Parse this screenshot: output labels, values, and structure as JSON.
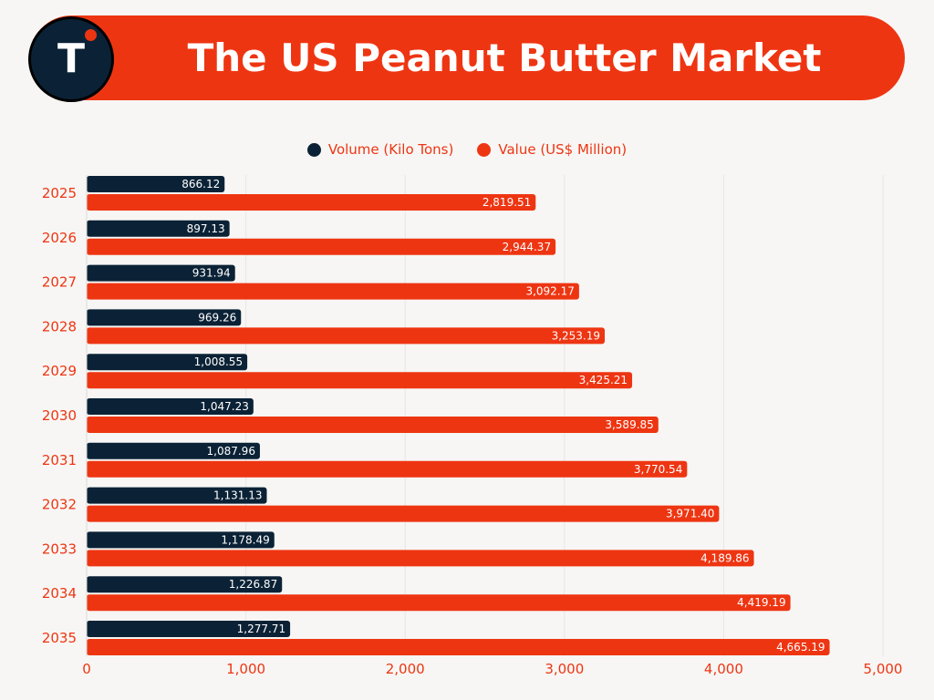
{
  "header": {
    "title": "The US Peanut Butter Market",
    "logo_letter": "T",
    "logo_color": "#0b2236",
    "accent_color": "#ee3512"
  },
  "chart_data": {
    "type": "bar",
    "orientation": "horizontal",
    "title": "The US Peanut Butter Market",
    "categories": [
      "2025",
      "2026",
      "2027",
      "2028",
      "2029",
      "2030",
      "2031",
      "2032",
      "2033",
      "2034",
      "2035"
    ],
    "series": [
      {
        "name": "Volume (Kilo Tons)",
        "color": "#0b2236",
        "values": [
          866.12,
          897.13,
          931.94,
          969.26,
          1008.55,
          1047.23,
          1087.96,
          1131.13,
          1178.49,
          1226.87,
          1277.71
        ],
        "labels": [
          "866.12",
          "897.13",
          "931.94",
          "969.26",
          "1,008.55",
          "1,047.23",
          "1,087.96",
          "1,131.13",
          "1,178.49",
          "1,226.87",
          "1,277.71"
        ]
      },
      {
        "name": "Value (US$ Million)",
        "color": "#ee3512",
        "values": [
          2819.51,
          2944.37,
          3092.17,
          3253.19,
          3425.21,
          3589.85,
          3770.54,
          3971.4,
          4189.86,
          4419.19,
          4665.19
        ],
        "labels": [
          "2,819.51",
          "2,944.37",
          "3,092.17",
          "3,253.19",
          "3,425.21",
          "3,589.85",
          "3,770.54",
          "3,971.40",
          "4,189.86",
          "4,419.19",
          "4,665.19"
        ]
      }
    ],
    "xlim": [
      0,
      5000
    ],
    "xticks": [
      0,
      1000,
      2000,
      3000,
      4000,
      5000
    ],
    "xtick_labels": [
      "0",
      "1,000",
      "2,000",
      "3,000",
      "4,000",
      "5,000"
    ],
    "xlabel": "",
    "ylabel": "",
    "grid": "vertical",
    "legend_position": "top"
  }
}
